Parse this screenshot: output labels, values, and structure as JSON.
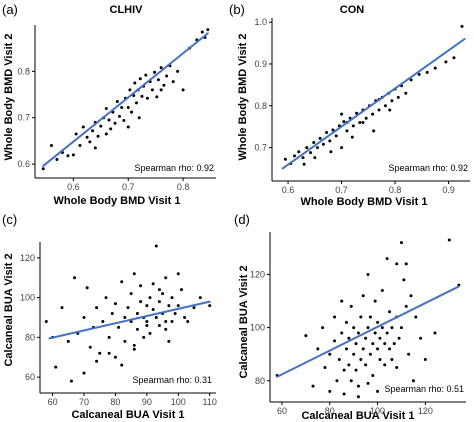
{
  "colors": {
    "fit_line": "#4472C4",
    "points": "#000000",
    "axis": "#000000",
    "tick_text": "#444444"
  },
  "chart_data": [
    {
      "type": "scatter",
      "panel_label": "(a)",
      "title": "CLHIV",
      "xlabel": "Whole Body BMD Visit 1",
      "ylabel": "Whole Body BMD Visit 2",
      "annotation": "Spearman rho: 0.92",
      "xlim": [
        0.53,
        0.86
      ],
      "ylim": [
        0.57,
        0.9
      ],
      "xticks": [
        0.6,
        0.7,
        0.8
      ],
      "xtick_labels": [
        "0.6",
        "0.7",
        "0.8"
      ],
      "yticks": [
        0.6,
        0.7,
        0.8
      ],
      "ytick_labels": [
        "0.6",
        "0.7",
        "0.8"
      ],
      "fit_line": {
        "x": [
          0.545,
          0.845
        ],
        "y": [
          0.596,
          0.882
        ]
      },
      "points": [
        [
          0.545,
          0.59
        ],
        [
          0.56,
          0.64
        ],
        [
          0.57,
          0.61
        ],
        [
          0.58,
          0.625
        ],
        [
          0.59,
          0.618
        ],
        [
          0.6,
          0.62
        ],
        [
          0.605,
          0.665
        ],
        [
          0.612,
          0.64
        ],
        [
          0.618,
          0.68
        ],
        [
          0.625,
          0.658
        ],
        [
          0.63,
          0.648
        ],
        [
          0.635,
          0.672
        ],
        [
          0.64,
          0.69
        ],
        [
          0.645,
          0.66
        ],
        [
          0.65,
          0.682
        ],
        [
          0.655,
          0.7
        ],
        [
          0.66,
          0.665
        ],
        [
          0.665,
          0.695
        ],
        [
          0.668,
          0.676
        ],
        [
          0.672,
          0.712
        ],
        [
          0.676,
          0.688
        ],
        [
          0.68,
          0.735
        ],
        [
          0.684,
          0.703
        ],
        [
          0.688,
          0.722
        ],
        [
          0.692,
          0.694
        ],
        [
          0.695,
          0.742
        ],
        [
          0.7,
          0.722
        ],
        [
          0.703,
          0.76
        ],
        [
          0.706,
          0.712
        ],
        [
          0.71,
          0.748
        ],
        [
          0.712,
          0.775
        ],
        [
          0.715,
          0.732
        ],
        [
          0.718,
          0.76
        ],
        [
          0.722,
          0.784
        ],
        [
          0.725,
          0.746
        ],
        [
          0.728,
          0.768
        ],
        [
          0.732,
          0.792
        ],
        [
          0.735,
          0.742
        ],
        [
          0.74,
          0.778
        ],
        [
          0.744,
          0.76
        ],
        [
          0.748,
          0.798
        ],
        [
          0.752,
          0.745
        ],
        [
          0.755,
          0.782
        ],
        [
          0.76,
          0.808
        ],
        [
          0.765,
          0.77
        ],
        [
          0.77,
          0.79
        ],
        [
          0.776,
          0.812
        ],
        [
          0.782,
          0.778
        ],
        [
          0.79,
          0.8
        ],
        [
          0.8,
          0.76
        ],
        [
          0.812,
          0.85
        ],
        [
          0.825,
          0.868
        ],
        [
          0.835,
          0.885
        ],
        [
          0.84,
          0.873
        ],
        [
          0.845,
          0.89
        ],
        [
          0.7,
          0.68
        ],
        [
          0.66,
          0.72
        ],
        [
          0.64,
          0.635
        ],
        [
          0.72,
          0.7
        ],
        [
          0.76,
          0.76
        ]
      ]
    },
    {
      "type": "scatter",
      "panel_label": "(b)",
      "title": "CON",
      "xlabel": "Whole Body BMD Visit 1",
      "ylabel": "Whole Body BMD Visit 2",
      "annotation": "Spearman rho: 0.92",
      "xlim": [
        0.57,
        0.94
      ],
      "ylim": [
        0.62,
        1.01
      ],
      "xticks": [
        0.6,
        0.7,
        0.8,
        0.9
      ],
      "xtick_labels": [
        "0.6",
        "0.7",
        "0.8",
        "0.9"
      ],
      "yticks": [
        0.7,
        0.8,
        0.9,
        1.0
      ],
      "ytick_labels": [
        "0.7",
        "0.8",
        "0.9",
        "1.0"
      ],
      "fit_line": {
        "x": [
          0.59,
          0.93
        ],
        "y": [
          0.65,
          0.96
        ]
      },
      "points": [
        [
          0.595,
          0.672
        ],
        [
          0.605,
          0.662
        ],
        [
          0.612,
          0.68
        ],
        [
          0.62,
          0.69
        ],
        [
          0.628,
          0.676
        ],
        [
          0.635,
          0.7
        ],
        [
          0.642,
          0.688
        ],
        [
          0.648,
          0.712
        ],
        [
          0.655,
          0.7
        ],
        [
          0.66,
          0.722
        ],
        [
          0.666,
          0.708
        ],
        [
          0.672,
          0.736
        ],
        [
          0.678,
          0.716
        ],
        [
          0.684,
          0.742
        ],
        [
          0.69,
          0.728
        ],
        [
          0.696,
          0.752
        ],
        [
          0.7,
          0.7
        ],
        [
          0.704,
          0.762
        ],
        [
          0.71,
          0.74
        ],
        [
          0.716,
          0.77
        ],
        [
          0.722,
          0.752
        ],
        [
          0.728,
          0.782
        ],
        [
          0.734,
          0.76
        ],
        [
          0.74,
          0.79
        ],
        [
          0.746,
          0.77
        ],
        [
          0.752,
          0.8
        ],
        [
          0.758,
          0.78
        ],
        [
          0.764,
          0.812
        ],
        [
          0.77,
          0.79
        ],
        [
          0.776,
          0.82
        ],
        [
          0.782,
          0.8
        ],
        [
          0.788,
          0.83
        ],
        [
          0.794,
          0.812
        ],
        [
          0.8,
          0.84
        ],
        [
          0.806,
          0.82
        ],
        [
          0.812,
          0.848
        ],
        [
          0.82,
          0.83
        ],
        [
          0.83,
          0.862
        ],
        [
          0.845,
          0.875
        ],
        [
          0.86,
          0.88
        ],
        [
          0.875,
          0.89
        ],
        [
          0.895,
          0.905
        ],
        [
          0.91,
          0.915
        ],
        [
          0.925,
          0.99
        ],
        [
          0.65,
          0.676
        ],
        [
          0.7,
          0.78
        ],
        [
          0.74,
          0.76
        ],
        [
          0.77,
          0.815
        ],
        [
          0.72,
          0.725
        ],
        [
          0.68,
          0.69
        ],
        [
          0.76,
          0.74
        ],
        [
          0.79,
          0.79
        ],
        [
          0.71,
          0.76
        ],
        [
          0.63,
          0.66
        ]
      ]
    },
    {
      "type": "scatter",
      "panel_label": "(c)",
      "title": "",
      "xlabel": "Calcaneal BUA Visit 1",
      "ylabel": "Calcaneal BUA Visit 2",
      "annotation": "Spearman rho: 0.31",
      "xlim": [
        56,
        112
      ],
      "ylim": [
        52,
        128
      ],
      "xticks": [
        60,
        70,
        80,
        90,
        100,
        110
      ],
      "xtick_labels": [
        "60",
        "70",
        "80",
        "90",
        "100",
        "110"
      ],
      "yticks": [
        60,
        80,
        100,
        120
      ],
      "ytick_labels": [
        "60",
        "80",
        "100",
        "120"
      ],
      "fit_line": {
        "x": [
          59,
          110
        ],
        "y": [
          79.5,
          98.0
        ]
      },
      "points": [
        [
          58,
          88
        ],
        [
          60,
          80
        ],
        [
          61,
          65
        ],
        [
          63,
          95
        ],
        [
          65,
          78
        ],
        [
          67,
          110
        ],
        [
          68,
          82
        ],
        [
          70,
          90
        ],
        [
          71,
          105
        ],
        [
          72,
          75
        ],
        [
          73,
          85
        ],
        [
          74,
          95
        ],
        [
          75,
          72
        ],
        [
          76,
          88
        ],
        [
          77,
          100
        ],
        [
          78,
          80
        ],
        [
          79,
          92
        ],
        [
          80,
          70
        ],
        [
          80,
          97
        ],
        [
          81,
          85
        ],
        [
          82,
          108
        ],
        [
          83,
          90
        ],
        [
          83,
          78
        ],
        [
          84,
          95
        ],
        [
          85,
          88
        ],
        [
          85,
          102
        ],
        [
          86,
          76
        ],
        [
          86,
          112
        ],
        [
          87,
          92
        ],
        [
          87,
          84
        ],
        [
          88,
          98
        ],
        [
          88,
          106
        ],
        [
          89,
          90
        ],
        [
          89,
          80
        ],
        [
          90,
          96
        ],
        [
          90,
          88
        ],
        [
          91,
          100
        ],
        [
          91,
          82
        ],
        [
          92,
          94
        ],
        [
          92,
          107
        ],
        [
          93,
          90
        ],
        [
          93,
          126
        ],
        [
          94,
          86
        ],
        [
          94,
          98
        ],
        [
          95,
          102
        ],
        [
          95,
          92
        ],
        [
          96,
          84
        ],
        [
          96,
          110
        ],
        [
          97,
          96
        ],
        [
          97,
          78
        ],
        [
          98,
          100
        ],
        [
          98,
          88
        ],
        [
          99,
          92
        ],
        [
          100,
          96
        ],
        [
          101,
          104
        ],
        [
          102,
          90
        ],
        [
          103,
          88
        ],
        [
          105,
          95
        ],
        [
          107,
          100
        ],
        [
          110,
          96
        ],
        [
          66,
          58
        ],
        [
          70,
          62
        ],
        [
          74,
          68
        ],
        [
          78,
          72
        ],
        [
          82,
          66
        ],
        [
          86,
          74
        ],
        [
          90,
          86
        ],
        [
          94,
          104
        ],
        [
          96,
          88
        ],
        [
          100,
          112
        ]
      ]
    },
    {
      "type": "scatter",
      "panel_label": "(d)",
      "title": "",
      "xlabel": "Calcaneal BUA Visit 1",
      "ylabel": "Calcaneal BUA Visit 2",
      "annotation": "Spearman rho: 0.51",
      "xlim": [
        55,
        137
      ],
      "ylim": [
        72,
        136
      ],
      "xticks": [
        60,
        80,
        100,
        120
      ],
      "xtick_labels": [
        "60",
        "80",
        "100",
        "120"
      ],
      "yticks": [
        80,
        100,
        120
      ],
      "ytick_labels": [
        "80",
        "100",
        "120"
      ],
      "fit_line": {
        "x": [
          58,
          134
        ],
        "y": [
          81.5,
          115.5
        ]
      },
      "points": [
        [
          58,
          82
        ],
        [
          70,
          97
        ],
        [
          73,
          78
        ],
        [
          75,
          92
        ],
        [
          77,
          100
        ],
        [
          78,
          85
        ],
        [
          80,
          90
        ],
        [
          80,
          76
        ],
        [
          82,
          95
        ],
        [
          82,
          104
        ],
        [
          83,
          80
        ],
        [
          84,
          88
        ],
        [
          85,
          98
        ],
        [
          85,
          110
        ],
        [
          86,
          84
        ],
        [
          86,
          75
        ],
        [
          87,
          92
        ],
        [
          87,
          102
        ],
        [
          88,
          86
        ],
        [
          88,
          96
        ],
        [
          89,
          80
        ],
        [
          89,
          108
        ],
        [
          90,
          90
        ],
        [
          90,
          100
        ],
        [
          91,
          84
        ],
        [
          91,
          94
        ],
        [
          92,
          98
        ],
        [
          92,
          78
        ],
        [
          93,
          104
        ],
        [
          93,
          88
        ],
        [
          94,
          92
        ],
        [
          94,
          112
        ],
        [
          95,
          96
        ],
        [
          95,
          86
        ],
        [
          96,
          100
        ],
        [
          96,
          120
        ],
        [
          97,
          90
        ],
        [
          97,
          104
        ],
        [
          98,
          94
        ],
        [
          98,
          82
        ],
        [
          99,
          98
        ],
        [
          99,
          110
        ],
        [
          100,
          92
        ],
        [
          100,
          102
        ],
        [
          101,
          88
        ],
        [
          101,
          96
        ],
        [
          102,
          100
        ],
        [
          102,
          114
        ],
        [
          103,
          94
        ],
        [
          103,
          86
        ],
        [
          104,
          98
        ],
        [
          104,
          126
        ],
        [
          105,
          92
        ],
        [
          105,
          106
        ],
        [
          106,
          100
        ],
        [
          106,
          88
        ],
        [
          107,
          94
        ],
        [
          108,
          104
        ],
        [
          108,
          124
        ],
        [
          109,
          96
        ],
        [
          110,
          100
        ],
        [
          110,
          132
        ],
        [
          111,
          118
        ],
        [
          112,
          108
        ],
        [
          113,
          90
        ],
        [
          114,
          112
        ],
        [
          115,
          80
        ],
        [
          116,
          104
        ],
        [
          118,
          96
        ],
        [
          120,
          88
        ],
        [
          124,
          98
        ],
        [
          130,
          133
        ],
        [
          134,
          116
        ],
        [
          100,
          76
        ],
        [
          96,
          79
        ],
        [
          92,
          74
        ],
        [
          108,
          85
        ],
        [
          112,
          124
        ]
      ]
    }
  ]
}
